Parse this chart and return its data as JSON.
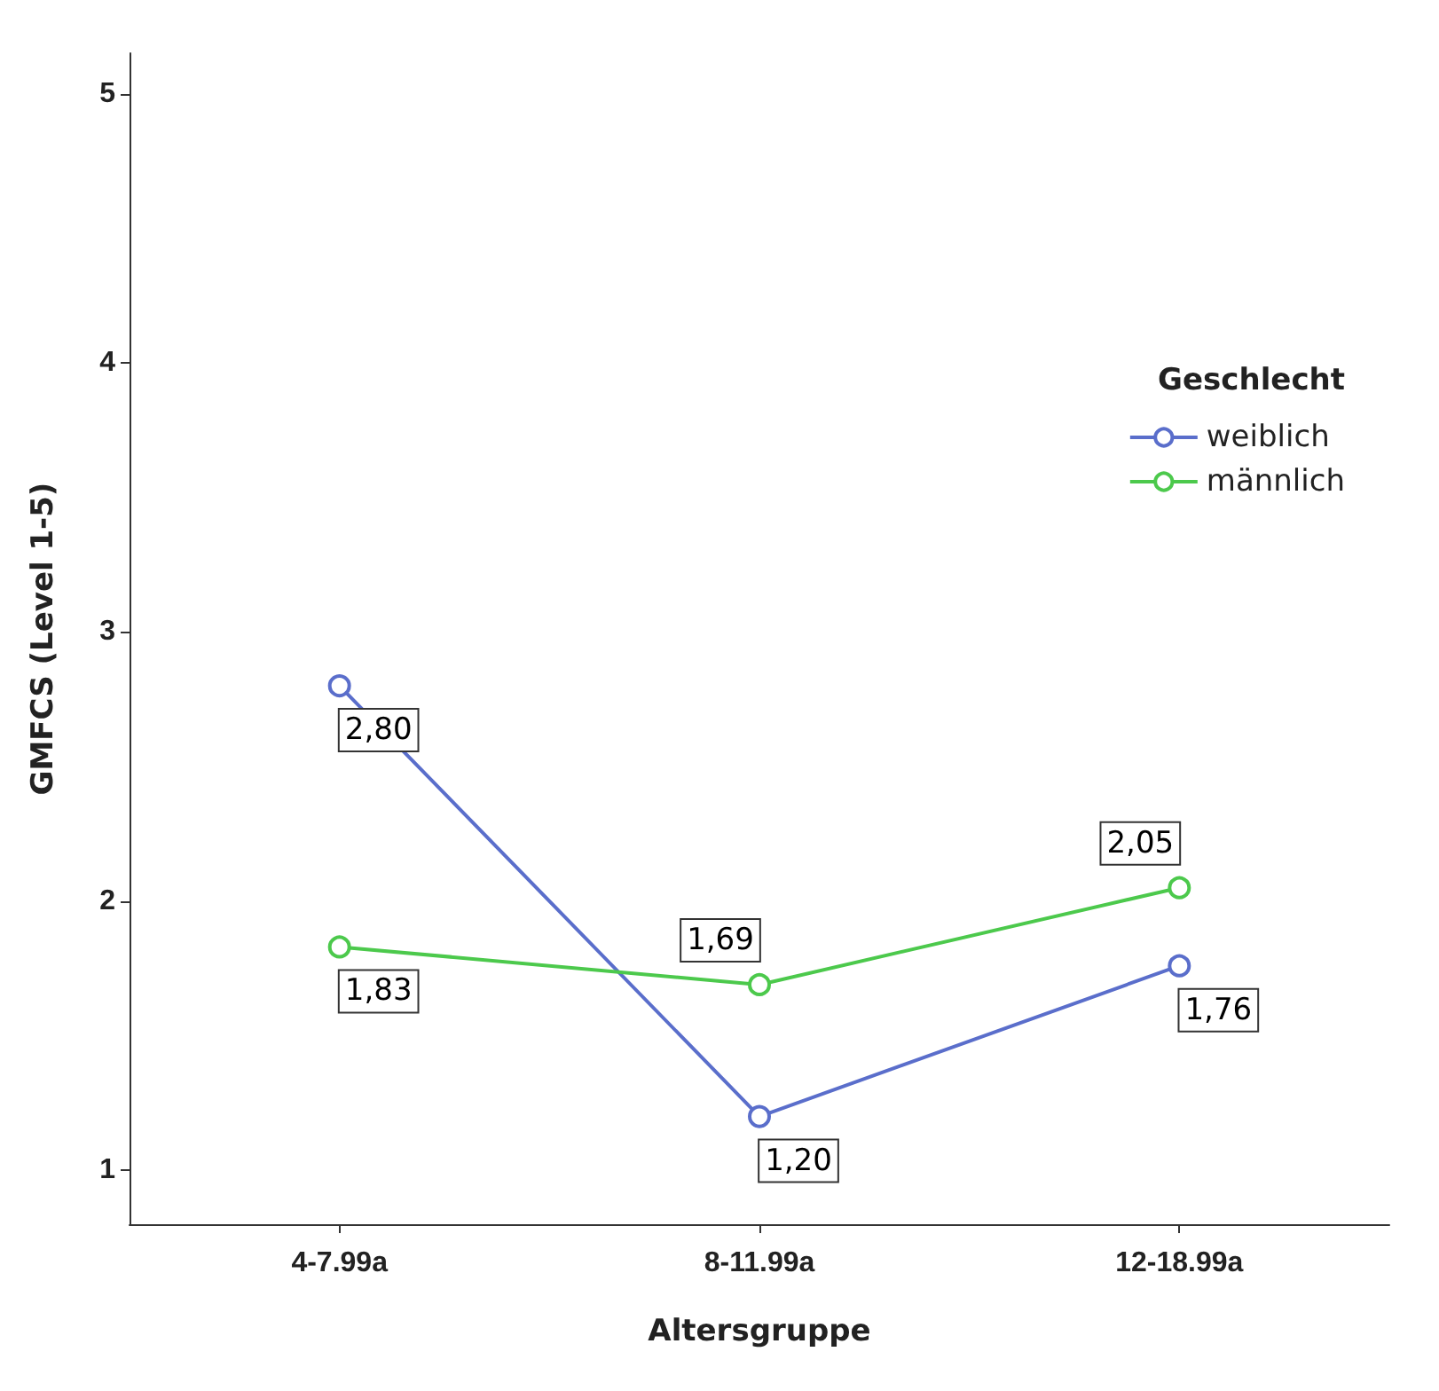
{
  "chart_data": {
    "type": "line",
    "xlabel": "Altersgruppe",
    "ylabel": "GMFCS (Level 1-5)",
    "legend_title": "Geschlecht",
    "categories": [
      "4-7.99a",
      "8-11.99a",
      "12-18.99a"
    ],
    "series": [
      {
        "name": "weiblich",
        "color": "#5a6ecb",
        "values": [
          2.8,
          1.2,
          1.76
        ],
        "value_labels": [
          "2,80",
          "1,20",
          "1,76"
        ]
      },
      {
        "name": "männlich",
        "color": "#4cc94c",
        "values": [
          1.83,
          1.69,
          2.05
        ],
        "value_labels": [
          "1,83",
          "1,69",
          "2,05"
        ]
      }
    ],
    "ylim": [
      0.8,
      5.15
    ],
    "yticks": [
      1,
      2,
      3,
      4,
      5
    ],
    "grid": false,
    "legend": "right",
    "marker": "circle",
    "line_style": "solid"
  }
}
